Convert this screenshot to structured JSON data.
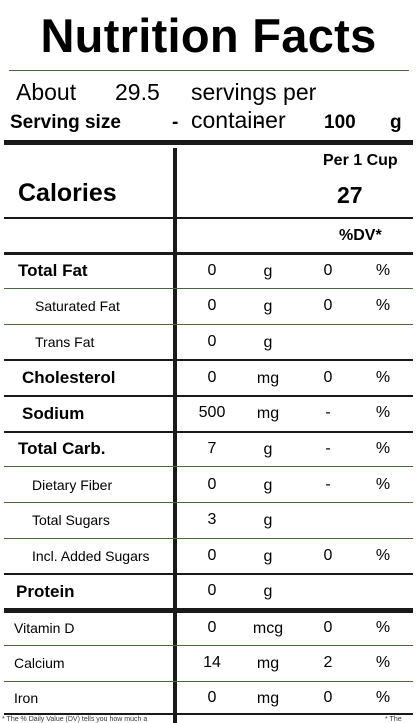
{
  "title": "Nutrition Facts",
  "servings": {
    "prefix": "About",
    "count": "29.5",
    "suffix": "servings per container"
  },
  "serving_size": {
    "label": "Serving size",
    "dash1": "-",
    "dash2": "-",
    "amount": "100",
    "unit": "g"
  },
  "per_header": "Per 1 Cup",
  "calories": {
    "label": "Calories",
    "value": "27"
  },
  "dv_header": "%DV*",
  "nutrients": [
    {
      "name": "Total Fat",
      "amount": "0",
      "unit": "g",
      "dv": "0",
      "pct": "%"
    },
    {
      "name": "Saturated Fat",
      "amount": "0",
      "unit": "g",
      "dv": "0",
      "pct": "%"
    },
    {
      "name": "Trans Fat",
      "amount": "0",
      "unit": "g",
      "dv": "",
      "pct": ""
    },
    {
      "name": "Cholesterol",
      "amount": "0",
      "unit": "mg",
      "dv": "0",
      "pct": "%"
    },
    {
      "name": "Sodium",
      "amount": "500",
      "unit": "mg",
      "dv": "-",
      "pct": "%"
    },
    {
      "name": "Total Carb.",
      "amount": "7",
      "unit": "g",
      "dv": "-",
      "pct": "%"
    },
    {
      "name": "Dietary Fiber",
      "amount": "0",
      "unit": "g",
      "dv": "-",
      "pct": "%"
    },
    {
      "name": "Total Sugars",
      "amount": "3",
      "unit": "g",
      "dv": "",
      "pct": ""
    },
    {
      "name": "Incl. Added Sugars",
      "amount": "0",
      "unit": "g",
      "dv": "0",
      "pct": "%"
    },
    {
      "name": "Protein",
      "amount": "0",
      "unit": "g",
      "dv": "",
      "pct": ""
    },
    {
      "name": "Vitamin D",
      "amount": "0",
      "unit": "mcg",
      "dv": "0",
      "pct": "%"
    },
    {
      "name": "Calcium",
      "amount": "14",
      "unit": "mg",
      "dv": "2",
      "pct": "%"
    },
    {
      "name": "Iron",
      "amount": "0",
      "unit": "mg",
      "dv": "0",
      "pct": "%"
    }
  ],
  "footnote_left": "* The % Daily Value (DV) tells you how much a",
  "footnote_right": "* The"
}
